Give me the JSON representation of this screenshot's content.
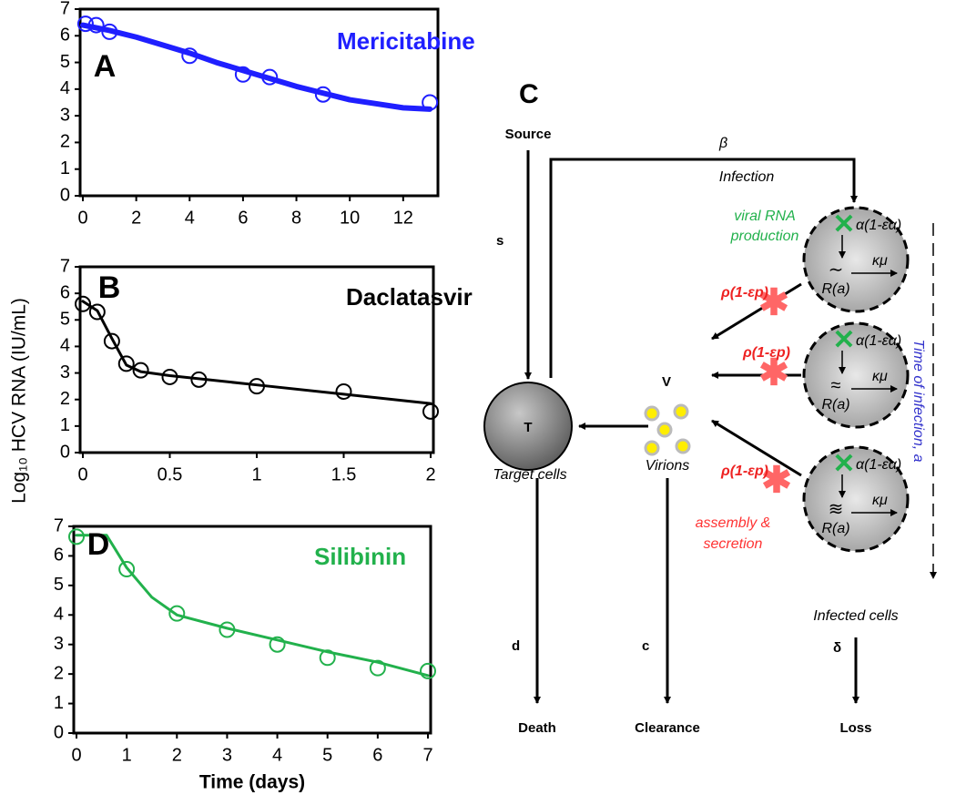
{
  "chart_data": [
    {
      "type": "line",
      "panel": "A",
      "title": "Mericitabine",
      "xlim": [
        0,
        13.2
      ],
      "ylim": [
        0,
        7
      ],
      "xticks": [
        0,
        2,
        4,
        6,
        8,
        10,
        12
      ],
      "yticks": [
        0,
        1,
        2,
        3,
        4,
        5,
        6,
        7
      ],
      "color": "#1f1fff",
      "series": [
        {
          "style": "line",
          "x": [
            0,
            1,
            2,
            3,
            4,
            5,
            6,
            7,
            8,
            9,
            10,
            11,
            12,
            13
          ],
          "values": [
            6.4,
            6.2,
            5.95,
            5.65,
            5.35,
            5.0,
            4.7,
            4.4,
            4.1,
            3.85,
            3.6,
            3.45,
            3.3,
            3.25
          ]
        },
        {
          "style": "markers",
          "x": [
            0.1,
            0.5,
            1,
            4,
            6,
            7,
            9,
            13
          ],
          "values": [
            6.45,
            6.4,
            6.15,
            5.25,
            4.55,
            4.45,
            3.8,
            3.5
          ]
        }
      ]
    },
    {
      "type": "line",
      "panel": "B",
      "title": "Daclatasvir",
      "xlim": [
        0,
        2
      ],
      "ylim": [
        0,
        7
      ],
      "xticks": [
        0,
        0.5,
        1,
        1.5,
        2
      ],
      "yticks": [
        0,
        1,
        2,
        3,
        4,
        5,
        6,
        7
      ],
      "color": "#000000",
      "series": [
        {
          "style": "line",
          "x": [
            0,
            0.083,
            0.167,
            0.25,
            0.333,
            0.5,
            1,
            1.5,
            2
          ],
          "values": [
            5.7,
            5.35,
            4.3,
            3.3,
            3.05,
            2.9,
            2.55,
            2.2,
            1.85
          ]
        },
        {
          "style": "markers",
          "x": [
            0,
            0.083,
            0.167,
            0.25,
            0.333,
            0.5,
            0.667,
            1,
            1.5,
            2
          ],
          "values": [
            5.6,
            5.3,
            4.2,
            3.35,
            3.1,
            2.85,
            2.75,
            2.5,
            2.3,
            1.55
          ]
        }
      ]
    },
    {
      "type": "line",
      "panel": "D",
      "title": "Silibinin",
      "xlim": [
        0,
        7
      ],
      "ylim": [
        0,
        7
      ],
      "xticks": [
        0,
        1,
        2,
        3,
        4,
        5,
        6,
        7
      ],
      "yticks": [
        0,
        1,
        2,
        3,
        4,
        5,
        6,
        7
      ],
      "color": "#22b14c",
      "xlabel": "Time (days)",
      "series": [
        {
          "style": "line",
          "x": [
            0,
            0.6,
            1,
            1.5,
            2,
            3,
            4,
            5,
            6,
            7
          ],
          "values": [
            6.7,
            6.7,
            5.6,
            4.6,
            4.0,
            3.55,
            3.15,
            2.75,
            2.4,
            1.95
          ]
        },
        {
          "style": "markers",
          "x": [
            0,
            1,
            2,
            3,
            4,
            5,
            6,
            7
          ],
          "values": [
            6.65,
            5.55,
            4.05,
            3.5,
            3.0,
            2.55,
            2.2,
            2.1
          ]
        }
      ]
    }
  ],
  "ylabel": "Log₁₀ HCV RNA (IU/mL)",
  "diagram": {
    "panel": "C",
    "source": "Source",
    "s": "s",
    "beta": "β",
    "infection": "Infection",
    "t": "T",
    "target_cells": "Target cells",
    "v": "V",
    "virions": "Virions",
    "viral_rna": [
      "viral RNA",
      "production"
    ],
    "assembly": [
      "assembly &",
      "secretion"
    ],
    "infected_cells": "Infected cells",
    "time_of_infection": "Time of infection, a",
    "alpha": "α(1-εα)",
    "kappa_mu": "κμ",
    "r_a": "R(a)",
    "rho": "ρ(1-εp)",
    "d": "d",
    "c": "c",
    "delta": "δ",
    "death": "Death",
    "clearance": "Clearance",
    "loss": "Loss"
  }
}
